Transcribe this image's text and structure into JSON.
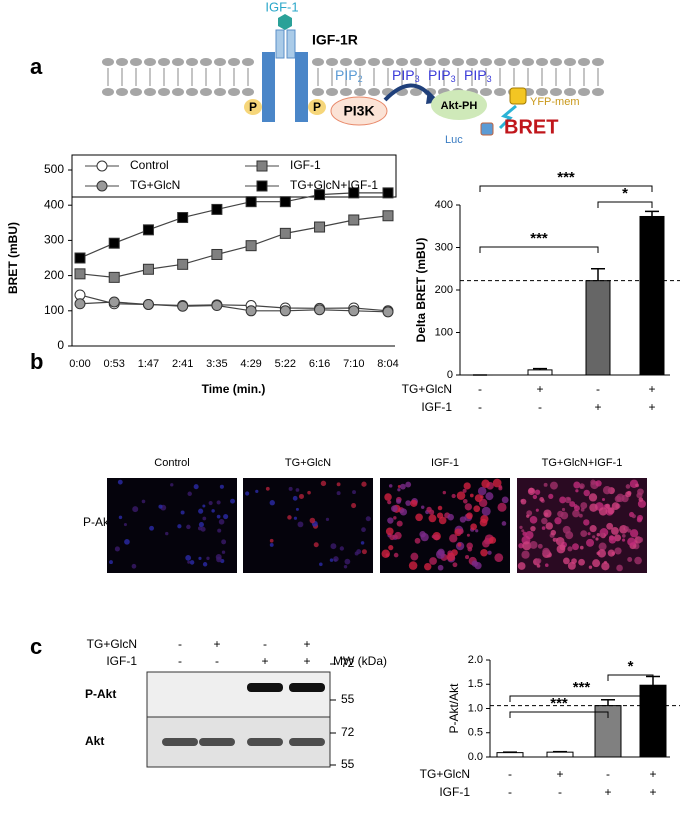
{
  "panels": [
    "a",
    "b",
    "c"
  ],
  "diagram": {
    "ligand": "IGF-1",
    "receptor": "IGF-1R",
    "pip2": "PIP",
    "pip2_sub": "2",
    "pip3": "PIP",
    "pip3_sub": "3",
    "phospho": "P",
    "pi3k": "PI3K",
    "akt": "Akt-PH",
    "yfp": "YFP-mem",
    "luc": "Luc",
    "bret": "BRET"
  },
  "microscopy": {
    "row_label": "P-Akt",
    "columns": [
      "Control",
      "TG+GlcN",
      "IGF-1",
      "TG+GlcN+IGF-1"
    ]
  },
  "blot": {
    "conditions": [
      {
        "name": "TG+GlcN",
        "signs": [
          "-",
          "+",
          "-",
          "+"
        ]
      },
      {
        "name": "IGF-1",
        "signs": [
          "-",
          "-",
          "+",
          "+"
        ]
      }
    ],
    "mw_label": "MW (kDa)",
    "rows": [
      {
        "name": "P-Akt",
        "markers": [
          "72",
          "55"
        ]
      },
      {
        "name": "Akt",
        "markers": [
          "72",
          "55"
        ]
      }
    ]
  },
  "chart_data": [
    {
      "type": "line",
      "xlabel": "Time (min.)",
      "ylabel": "BRET (mBU)",
      "categories": [
        "0:00",
        "0:53",
        "1:47",
        "2:41",
        "3:35",
        "4:29",
        "5:22",
        "6:16",
        "7:10",
        "8:04"
      ],
      "ylim": [
        0,
        500
      ],
      "yticks": [
        0,
        100,
        200,
        300,
        400,
        500
      ],
      "series": [
        {
          "name": "Control",
          "marker": "circle",
          "color": "#ffffff",
          "values": [
            145,
            120,
            118,
            115,
            117,
            115,
            108,
            107,
            108,
            100
          ]
        },
        {
          "name": "IGF-1",
          "marker": "square",
          "color": "#808080",
          "values": [
            205,
            195,
            218,
            232,
            260,
            285,
            320,
            338,
            358,
            370
          ]
        },
        {
          "name": "TG+GlcN",
          "marker": "circle",
          "color": "#9a9a9a",
          "values": [
            120,
            125,
            118,
            113,
            115,
            100,
            100,
            103,
            100,
            97
          ]
        },
        {
          "name": "TG+GlcN+IGF-1",
          "marker": "square",
          "color": "#000000",
          "values": [
            250,
            292,
            330,
            365,
            388,
            410,
            410,
            430,
            435,
            435
          ]
        }
      ]
    },
    {
      "type": "bar",
      "ylabel": "Delta BRET (mBU)",
      "ylim": [
        0,
        400
      ],
      "yticks": [
        0,
        100,
        200,
        300,
        400
      ],
      "values": [
        0,
        12,
        222,
        373
      ],
      "errors": [
        0,
        3,
        28,
        12
      ],
      "colors": [
        "#ffffff",
        "#ffffff",
        "#666666",
        "#000000"
      ],
      "reference_line": 222,
      "conditions": [
        {
          "name": "TG+GlcN",
          "signs": [
            "-",
            "+",
            "-",
            "+"
          ]
        },
        {
          "name": "IGF-1",
          "signs": [
            "-",
            "-",
            "+",
            "+"
          ]
        }
      ],
      "annotations": [
        {
          "label": "***",
          "from": 0,
          "to": 2
        },
        {
          "label": "*",
          "from": 2,
          "to": 3
        },
        {
          "label": "***",
          "from": 0,
          "to": 3
        }
      ]
    },
    {
      "type": "bar",
      "ylabel": "P-Akt/Akt",
      "ylim": [
        0,
        2
      ],
      "yticks": [
        {
          "value": 0,
          "label": "0.0"
        },
        0.5,
        {
          "value": 1,
          "label": "1.0"
        },
        1.5,
        {
          "value": 2,
          "label": "2.0"
        }
      ],
      "values": [
        0.09,
        0.1,
        1.06,
        1.48
      ],
      "errors": [
        0.01,
        0.01,
        0.12,
        0.18
      ],
      "colors": [
        "#ffffff",
        "#ffffff",
        "#808080",
        "#000000"
      ],
      "reference_line": 1.06,
      "conditions": [
        {
          "name": "TG+GlcN",
          "signs": [
            "-",
            "+",
            "-",
            "+"
          ]
        },
        {
          "name": "IGF-1",
          "signs": [
            "-",
            "-",
            "+",
            "+"
          ]
        }
      ],
      "annotations": [
        {
          "label": "***",
          "from": 0,
          "to": 2
        },
        {
          "label": "*",
          "from": 2,
          "to": 3
        },
        {
          "label": "***",
          "from": 0,
          "to": 3
        }
      ]
    }
  ]
}
